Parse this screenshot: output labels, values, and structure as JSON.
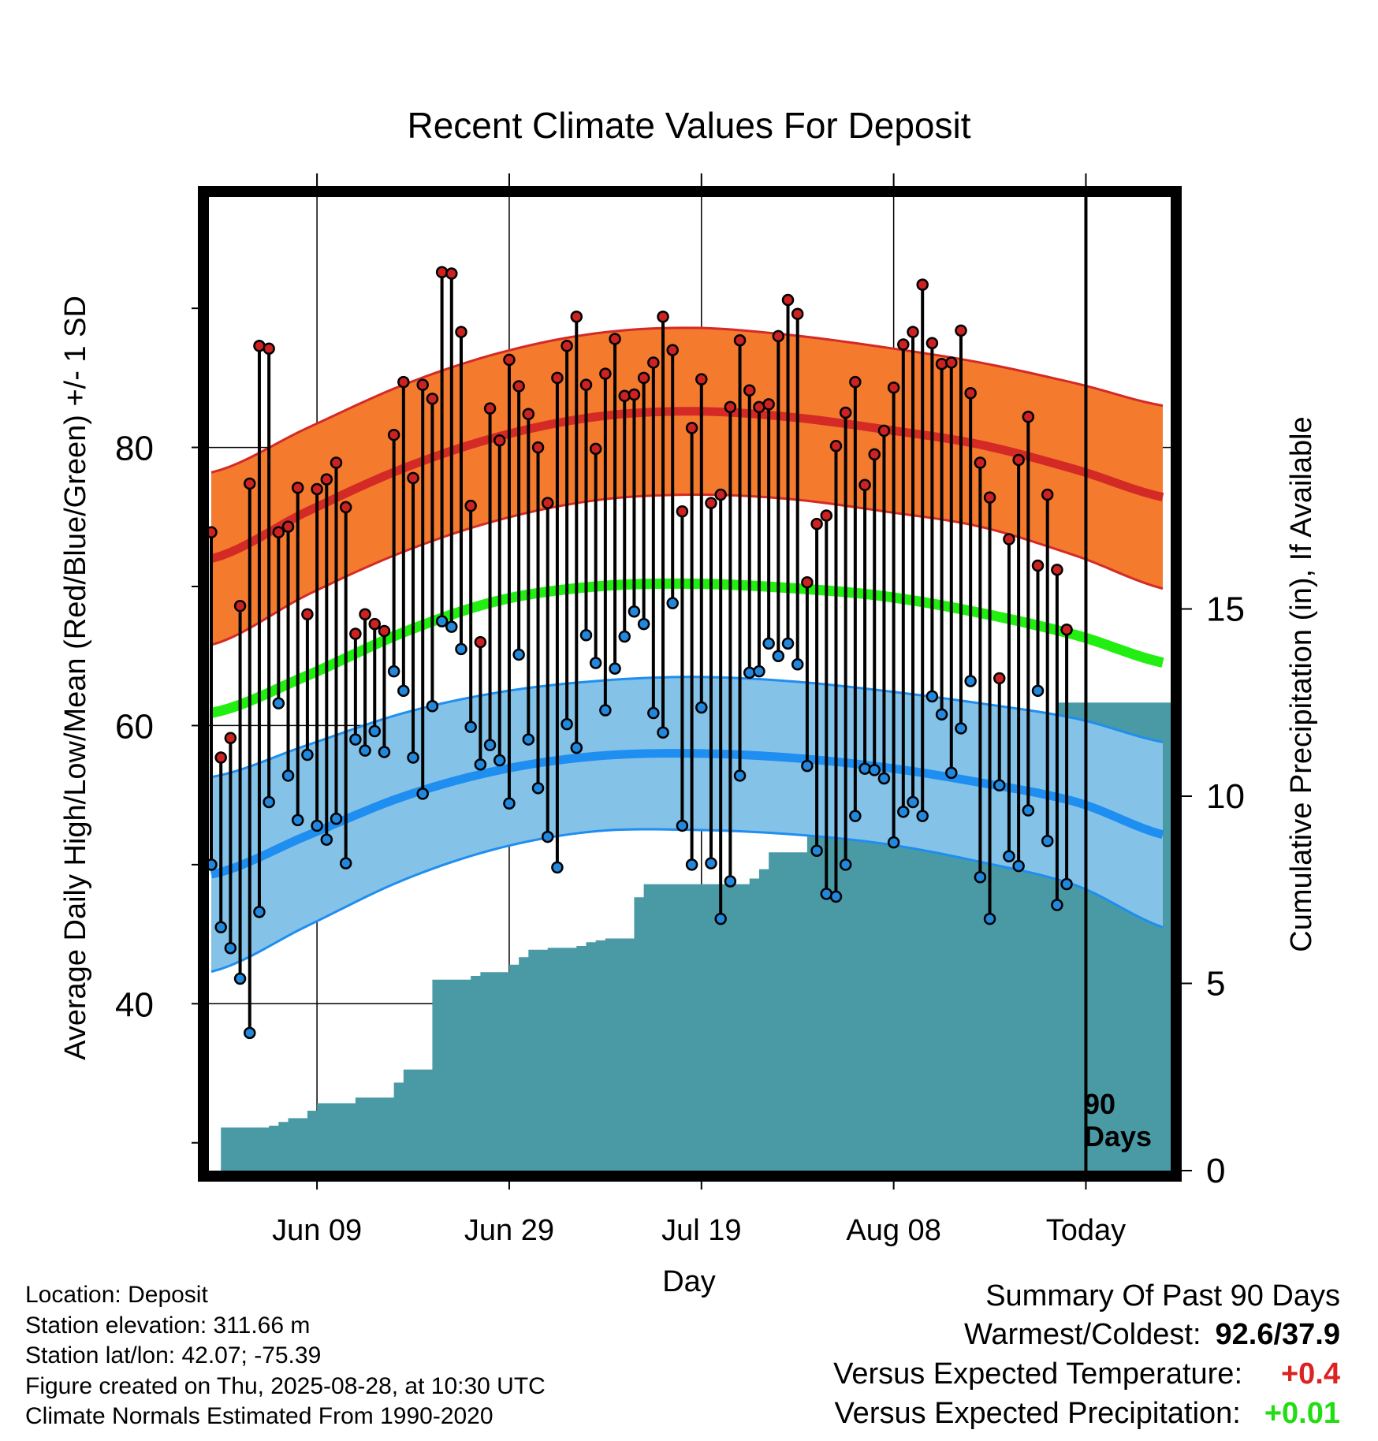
{
  "chart_data": {
    "type": "line",
    "title": "Recent Climate Values For Deposit",
    "xlabel": "Day",
    "ylabel": "Average Daily High/Low/Mean (Red/Blue/Green) +/- 1 SD",
    "y2label": "Cumulative Precipitation (in), If Available",
    "ylim": [
      28,
      98
    ],
    "y2lim": [
      0,
      26
    ],
    "y_ticks": [
      40,
      60,
      80
    ],
    "y_minor_ticks": [
      30,
      50,
      70,
      90
    ],
    "y2_ticks": [
      0,
      5,
      10,
      15
    ],
    "x_ticks": [
      {
        "day": 11,
        "label": "Jun 09"
      },
      {
        "day": 31,
        "label": "Jun 29"
      },
      {
        "day": 51,
        "label": "Jul 19"
      },
      {
        "day": 71,
        "label": "Aug 08"
      },
      {
        "day": 91,
        "label": "Today"
      }
    ],
    "xlim": [
      0,
      101
    ],
    "grid": true,
    "today_marker": {
      "day": 91,
      "label_line1": "90",
      "label_line2": "Days"
    },
    "normals": {
      "days": [
        0,
        10,
        20,
        30,
        40,
        50,
        60,
        70,
        80,
        90,
        100
      ],
      "high_mean": [
        72.0,
        75.4,
        78.5,
        80.8,
        82.2,
        82.6,
        82.2,
        81.3,
        80.2,
        78.4,
        76.3
      ],
      "high_sd": [
        6.2,
        6.0,
        6.0,
        6.0,
        6.0,
        6.0,
        5.9,
        5.9,
        5.9,
        6.2,
        6.6
      ],
      "low_mean": [
        49.3,
        52.1,
        54.9,
        56.8,
        57.8,
        58.0,
        57.7,
        57.0,
        55.9,
        54.5,
        52.0
      ],
      "low_sd": [
        7.0,
        6.5,
        6.0,
        5.6,
        5.4,
        5.5,
        5.5,
        5.5,
        5.7,
        6.0,
        6.7
      ],
      "mean": [
        60.9,
        63.6,
        66.7,
        69.0,
        70.0,
        70.2,
        69.9,
        69.3,
        68.1,
        66.5,
        64.4
      ]
    },
    "series": [
      {
        "name": "High",
        "color": "#cc2222",
        "values": [
          73.9,
          57.7,
          59.1,
          68.6,
          77.4,
          87.3,
          87.1,
          73.9,
          74.3,
          77.1,
          68.0,
          77.0,
          77.7,
          78.9,
          75.7,
          66.6,
          68.0,
          67.3,
          66.8,
          80.9,
          84.7,
          77.8,
          84.5,
          83.5,
          92.6,
          92.5,
          88.3,
          75.8,
          66.0,
          82.8,
          80.5,
          86.3,
          84.4,
          82.4,
          80.0,
          76.0,
          85.0,
          87.3,
          89.4,
          84.5,
          79.9,
          85.3,
          87.8,
          83.7,
          83.8,
          85.0,
          86.1,
          89.4,
          87.0,
          75.4,
          81.4,
          84.9,
          76.0,
          76.6,
          82.9,
          87.7,
          84.1,
          82.9,
          83.1,
          88.0,
          90.6,
          89.6,
          70.3,
          74.5,
          75.1,
          80.1,
          82.5,
          84.7,
          77.3,
          79.5,
          81.2,
          84.3,
          87.4,
          88.3,
          91.7,
          87.5,
          86.0,
          86.1,
          88.4,
          83.9,
          78.9,
          76.4,
          63.4,
          73.4,
          79.1,
          82.2,
          71.5,
          76.6,
          71.2,
          66.9
        ]
      },
      {
        "name": "Low",
        "color": "#2288dd",
        "values": [
          50.0,
          45.5,
          44.0,
          41.8,
          37.9,
          46.6,
          54.5,
          61.6,
          56.4,
          53.2,
          57.9,
          52.8,
          51.8,
          53.3,
          50.1,
          59.0,
          58.2,
          59.6,
          58.1,
          63.9,
          62.5,
          57.7,
          55.1,
          61.4,
          67.5,
          67.1,
          65.5,
          59.9,
          57.2,
          58.6,
          57.5,
          54.4,
          65.1,
          59.0,
          55.5,
          52.0,
          49.8,
          60.1,
          58.4,
          66.5,
          64.5,
          61.1,
          64.1,
          66.4,
          68.2,
          67.3,
          60.9,
          59.5,
          68.8,
          52.8,
          50.0,
          61.3,
          50.1,
          46.1,
          48.8,
          56.4,
          63.8,
          63.9,
          65.9,
          65.0,
          65.9,
          64.4,
          57.1,
          51.0,
          47.9,
          47.7,
          50.0,
          53.5,
          56.9,
          56.8,
          56.2,
          51.6,
          53.8,
          54.5,
          53.5,
          62.1,
          60.8,
          56.6,
          59.8,
          63.2,
          49.1,
          46.1,
          55.7,
          50.6,
          49.9,
          53.9,
          62.5,
          51.7,
          47.1,
          48.6
        ]
      },
      {
        "name": "Cumulative Precipitation",
        "color": "#4a9aa5",
        "values": [
          0.0,
          1.15,
          1.15,
          1.15,
          1.15,
          1.15,
          1.2,
          1.3,
          1.4,
          1.4,
          1.6,
          1.8,
          1.8,
          1.8,
          1.8,
          1.95,
          1.95,
          1.95,
          1.95,
          2.35,
          2.7,
          2.7,
          2.7,
          5.1,
          5.1,
          5.1,
          5.1,
          5.2,
          5.3,
          5.3,
          5.3,
          5.5,
          5.7,
          5.9,
          5.9,
          5.95,
          5.95,
          5.95,
          6.0,
          6.1,
          6.15,
          6.2,
          6.2,
          6.2,
          7.3,
          7.65,
          7.65,
          7.65,
          7.65,
          7.65,
          7.65,
          7.65,
          7.65,
          7.65,
          7.65,
          7.65,
          7.8,
          8.05,
          8.5,
          8.5,
          8.5,
          8.5,
          9.3,
          9.3,
          9.3,
          9.3,
          9.3,
          9.3,
          9.3,
          9.3,
          9.3,
          9.3,
          9.3,
          9.3,
          9.3,
          9.3,
          9.65,
          9.65,
          9.65,
          9.65,
          9.65,
          9.65,
          11.15,
          11.15,
          11.15,
          11.15,
          11.7,
          12.1,
          12.5,
          12.5,
          12.5,
          12.5,
          12.5,
          12.5,
          12.5,
          12.5,
          12.5,
          12.5,
          12.5,
          12.5,
          12.5,
          12.5
        ]
      }
    ],
    "colors": {
      "high_band": "#f47a2e",
      "high_line": "#d42a26",
      "high_band_edge": "#d42a26",
      "low_band": "#85c2e8",
      "low_line": "#1e8ef0",
      "low_band_edge": "#1e8ef0",
      "mean_line": "#22ee11",
      "precip_fill": "#4a9aa5"
    }
  },
  "footer_left": [
    "Location: Deposit",
    "Station elevation: 311.66 m",
    "Station lat/lon: 42.07; -75.39",
    "Figure created on Thu, 2025-08-28, at 10:30 UTC",
    "Climate Normals Estimated From 1990-2020"
  ],
  "summary": {
    "title": "Summary Of Past 90 Days",
    "warmest_coldest_label": "Warmest/Coldest:",
    "warmest_coldest_value": "92.6/37.9",
    "temp_label": "Versus Expected Temperature:",
    "temp_value": "+0.4",
    "temp_color": "#dd2222",
    "precip_label": "Versus Expected Precipitation:",
    "precip_value": "+0.01",
    "precip_color": "#22dd11"
  }
}
